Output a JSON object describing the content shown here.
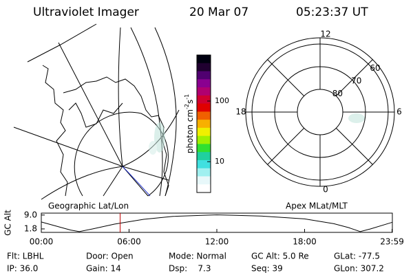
{
  "header": {
    "title": "Ultraviolet Imager",
    "date": "20 Mar 07",
    "time": "05:23:37 UT"
  },
  "map": {
    "label": "Geographic Lat/Lon"
  },
  "colorbar": {
    "scale": "log",
    "range": [
      3.1,
      575
    ],
    "ticks": [
      10,
      100
    ],
    "label": [
      "photon cm",
      "-2",
      "s",
      "-1"
    ]
  },
  "polar": {
    "label": "Apex MLat/MLT",
    "rings": [
      80,
      70,
      60
    ],
    "hour_labels": [
      12,
      18,
      6,
      0
    ]
  },
  "timeline": {
    "type": "line",
    "ylabel": "GC Alt",
    "ylim": [
      0,
      10
    ],
    "yticks": [
      {
        "value": 9,
        "label": "9.0"
      },
      {
        "value": 1.8,
        "label": "1.8"
      }
    ],
    "xlim": [
      0,
      24
    ],
    "xticks": [
      {
        "value": 0,
        "label": "00:00"
      },
      {
        "value": 6,
        "label": "06:00"
      },
      {
        "value": 12,
        "label": "12:00"
      },
      {
        "value": 18,
        "label": "18:00"
      },
      {
        "value": 23.98,
        "label": "23:59"
      }
    ],
    "x": [
      0,
      1,
      2,
      2.6,
      3.5,
      5,
      7,
      9,
      12,
      15,
      18,
      20,
      21,
      21.8,
      22.5,
      23.98
    ],
    "values": [
      5.4,
      3.3,
      1.2,
      0.4,
      1.8,
      4.3,
      6.8,
      8.3,
      9.1,
      8.5,
      7,
      4.5,
      2.5,
      0.4,
      1.8,
      5.2
    ],
    "color": "#000000",
    "marker_x": 5.39,
    "marker_color": "#c00000"
  },
  "footer": {
    "rows": [
      [
        "Flt: LBHL",
        "Door: Open",
        "Mode: Normal",
        "GC Alt: 5.0 Re",
        "GLat: -77.5"
      ],
      [
        "IP: 36.0",
        "Gain: 14",
        "Dsp:    7.3",
        "Seq: 39",
        "GLon: 307.2"
      ]
    ]
  }
}
